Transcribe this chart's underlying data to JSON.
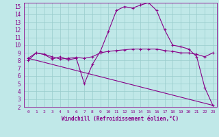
{
  "xlabel": "Windchill (Refroidissement éolien,°C)",
  "xlim": [
    -0.5,
    23.5
  ],
  "ylim": [
    2,
    15.5
  ],
  "xticks": [
    0,
    1,
    2,
    3,
    4,
    5,
    6,
    7,
    8,
    9,
    10,
    11,
    12,
    13,
    14,
    15,
    16,
    17,
    18,
    19,
    20,
    21,
    22,
    23
  ],
  "yticks": [
    2,
    3,
    4,
    5,
    6,
    7,
    8,
    9,
    10,
    11,
    12,
    13,
    14,
    15
  ],
  "bg_color": "#c0e8e8",
  "line_color": "#880088",
  "grid_color": "#99cccc",
  "line1_x": [
    0,
    1,
    2,
    3,
    4,
    5,
    6,
    7,
    8,
    9,
    10,
    11,
    12,
    13,
    14,
    15,
    16,
    17,
    18,
    19,
    20,
    21,
    22,
    23
  ],
  "line1_y": [
    8.0,
    9.0,
    8.8,
    8.2,
    8.5,
    8.1,
    8.3,
    5.0,
    7.5,
    9.2,
    11.8,
    14.5,
    15.0,
    14.8,
    15.2,
    15.5,
    14.5,
    12.0,
    10.0,
    9.8,
    9.5,
    8.5,
    4.5,
    2.2
  ],
  "line2_x": [
    0,
    1,
    2,
    3,
    4,
    5,
    6,
    7,
    8,
    9,
    10,
    11,
    12,
    13,
    14,
    15,
    16,
    17,
    18,
    19,
    20,
    21,
    22,
    23
  ],
  "line2_y": [
    8.3,
    9.0,
    8.8,
    8.5,
    8.2,
    8.3,
    8.4,
    8.3,
    8.5,
    9.0,
    9.2,
    9.3,
    9.4,
    9.5,
    9.5,
    9.5,
    9.5,
    9.3,
    9.2,
    9.0,
    9.0,
    8.8,
    8.5,
    9.0
  ],
  "line3_x": [
    0,
    23
  ],
  "line3_y": [
    8.3,
    2.2
  ]
}
